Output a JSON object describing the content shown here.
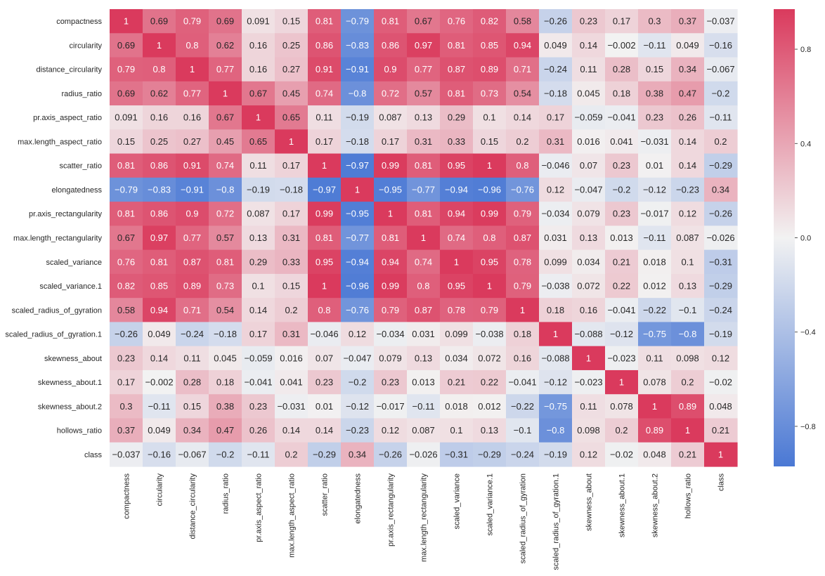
{
  "chart_data": {
    "type": "heatmap",
    "title": "",
    "xlabel": "",
    "ylabel": "",
    "labels": [
      "compactness",
      "circularity",
      "distance_circularity",
      "radius_ratio",
      "pr.axis_aspect_ratio",
      "max.length_aspect_ratio",
      "scatter_ratio",
      "elongatedness",
      "pr.axis_rectangularity",
      "max.length_rectangularity",
      "scaled_variance",
      "scaled_variance.1",
      "scaled_radius_of_gyration",
      "scaled_radius_of_gyration.1",
      "skewness_about",
      "skewness_about.1",
      "skewness_about.2",
      "hollows_ratio",
      "class"
    ],
    "matrix": [
      [
        1,
        0.69,
        0.79,
        0.69,
        0.091,
        0.15,
        0.81,
        -0.79,
        0.81,
        0.67,
        0.76,
        0.82,
        0.58,
        -0.26,
        0.23,
        0.17,
        0.3,
        0.37,
        -0.037
      ],
      [
        0.69,
        1,
        0.8,
        0.62,
        0.16,
        0.25,
        0.86,
        -0.83,
        0.86,
        0.97,
        0.81,
        0.85,
        0.94,
        0.049,
        0.14,
        -0.002,
        -0.11,
        0.049,
        -0.16
      ],
      [
        0.79,
        0.8,
        1,
        0.77,
        0.16,
        0.27,
        0.91,
        -0.91,
        0.9,
        0.77,
        0.87,
        0.89,
        0.71,
        -0.24,
        0.11,
        0.28,
        0.15,
        0.34,
        -0.067
      ],
      [
        0.69,
        0.62,
        0.77,
        1,
        0.67,
        0.45,
        0.74,
        -0.8,
        0.72,
        0.57,
        0.81,
        0.73,
        0.54,
        -0.18,
        0.045,
        0.18,
        0.38,
        0.47,
        -0.2
      ],
      [
        0.091,
        0.16,
        0.16,
        0.67,
        1,
        0.65,
        0.11,
        -0.19,
        0.087,
        0.13,
        0.29,
        0.1,
        0.14,
        0.17,
        -0.059,
        -0.041,
        0.23,
        0.26,
        -0.11
      ],
      [
        0.15,
        0.25,
        0.27,
        0.45,
        0.65,
        1,
        0.17,
        -0.18,
        0.17,
        0.31,
        0.33,
        0.15,
        0.2,
        0.31,
        0.016,
        0.041,
        -0.031,
        0.14,
        0.2
      ],
      [
        0.81,
        0.86,
        0.91,
        0.74,
        0.11,
        0.17,
        1,
        -0.97,
        0.99,
        0.81,
        0.95,
        1,
        0.8,
        -0.046,
        0.07,
        0.23,
        0.01,
        0.14,
        -0.29
      ],
      [
        -0.79,
        -0.83,
        -0.91,
        -0.8,
        -0.19,
        -0.18,
        -0.97,
        1,
        -0.95,
        -0.77,
        -0.94,
        -0.96,
        -0.76,
        0.12,
        -0.047,
        -0.2,
        -0.12,
        -0.23,
        0.34
      ],
      [
        0.81,
        0.86,
        0.9,
        0.72,
        0.087,
        0.17,
        0.99,
        -0.95,
        1,
        0.81,
        0.94,
        0.99,
        0.79,
        -0.034,
        0.079,
        0.23,
        -0.017,
        0.12,
        -0.26
      ],
      [
        0.67,
        0.97,
        0.77,
        0.57,
        0.13,
        0.31,
        0.81,
        -0.77,
        0.81,
        1,
        0.74,
        0.8,
        0.87,
        0.031,
        0.13,
        0.013,
        -0.11,
        0.087,
        -0.026
      ],
      [
        0.76,
        0.81,
        0.87,
        0.81,
        0.29,
        0.33,
        0.95,
        -0.94,
        0.94,
        0.74,
        1,
        0.95,
        0.78,
        0.099,
        0.034,
        0.21,
        0.018,
        0.1,
        -0.31
      ],
      [
        0.82,
        0.85,
        0.89,
        0.73,
        0.1,
        0.15,
        1,
        -0.96,
        0.99,
        0.8,
        0.95,
        1,
        0.79,
        -0.038,
        0.072,
        0.22,
        0.012,
        0.13,
        -0.29
      ],
      [
        0.58,
        0.94,
        0.71,
        0.54,
        0.14,
        0.2,
        0.8,
        -0.76,
        0.79,
        0.87,
        0.78,
        0.79,
        1,
        0.18,
        0.16,
        -0.041,
        -0.22,
        -0.1,
        -0.24
      ],
      [
        -0.26,
        0.049,
        -0.24,
        -0.18,
        0.17,
        0.31,
        -0.046,
        0.12,
        -0.034,
        0.031,
        0.099,
        -0.038,
        0.18,
        1,
        -0.088,
        -0.12,
        -0.75,
        -0.8,
        -0.19
      ],
      [
        0.23,
        0.14,
        0.11,
        0.045,
        -0.059,
        0.016,
        0.07,
        -0.047,
        0.079,
        0.13,
        0.034,
        0.072,
        0.16,
        -0.088,
        1,
        -0.023,
        0.11,
        0.098,
        0.12
      ],
      [
        0.17,
        -0.002,
        0.28,
        0.18,
        -0.041,
        0.041,
        0.23,
        -0.2,
        0.23,
        0.013,
        0.21,
        0.22,
        -0.041,
        -0.12,
        -0.023,
        1,
        0.078,
        0.2,
        -0.02
      ],
      [
        0.3,
        -0.11,
        0.15,
        0.38,
        0.23,
        -0.031,
        0.01,
        -0.12,
        -0.017,
        -0.11,
        0.018,
        0.012,
        -0.22,
        -0.75,
        0.11,
        0.078,
        1,
        0.89,
        0.048
      ],
      [
        0.37,
        0.049,
        0.34,
        0.47,
        0.26,
        0.14,
        0.14,
        -0.23,
        0.12,
        0.087,
        0.1,
        0.13,
        -0.1,
        -0.8,
        0.098,
        0.2,
        0.89,
        1,
        0.21
      ],
      [
        -0.037,
        -0.16,
        -0.067,
        -0.2,
        -0.11,
        0.2,
        -0.29,
        0.34,
        -0.26,
        -0.026,
        -0.31,
        -0.29,
        -0.24,
        -0.19,
        0.12,
        -0.02,
        0.048,
        0.21,
        1
      ]
    ],
    "colorbar": {
      "ticks": [
        0.8,
        0.4,
        0.0,
        -0.4,
        -0.8
      ],
      "tick_labels": [
        "0.8",
        "0.4",
        "0.0",
        "−0.4",
        "−0.8"
      ],
      "vmin": -1.0,
      "vmax": 1.0
    },
    "colormap": {
      "low": "#4a78d4",
      "mid": "#f2f2f2",
      "high": "#da3a5d"
    },
    "grid": false,
    "annotations": true
  }
}
